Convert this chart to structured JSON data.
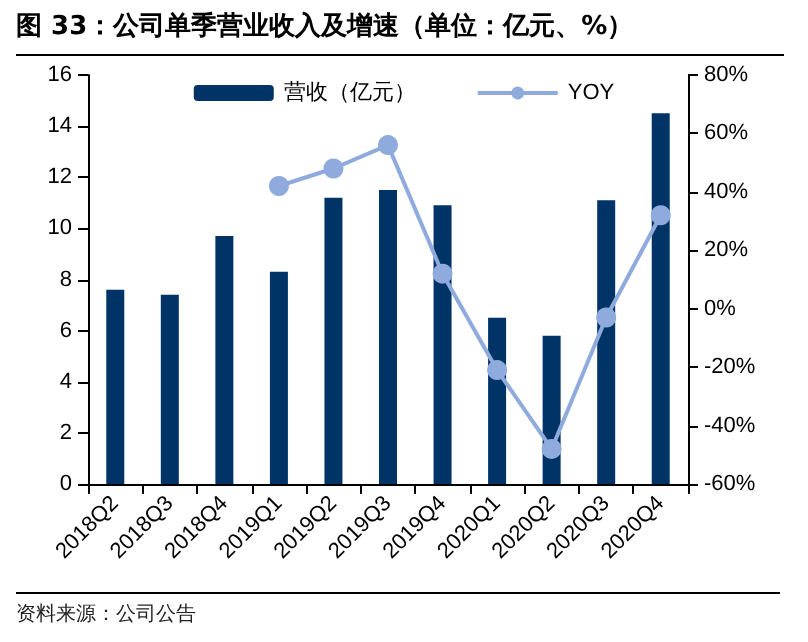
{
  "chart_data": {
    "type": "bar",
    "title": "图 33：公司单季营业收入及增速（单位：亿元、%）",
    "categories": [
      "2018Q2",
      "2018Q3",
      "2018Q4",
      "2019Q1",
      "2019Q2",
      "2019Q3",
      "2019Q4",
      "2020Q1",
      "2020Q2",
      "2020Q3",
      "2020Q4"
    ],
    "series": [
      {
        "name": "营收（亿元）",
        "color": "#003366",
        "values": [
          7.6,
          7.4,
          9.7,
          8.3,
          11.2,
          11.5,
          10.9,
          6.5,
          5.8,
          11.1,
          14.5
        ]
      },
      {
        "name": "YOY",
        "type": "line",
        "axis": "y2",
        "color": "#8faadc",
        "values": [
          null,
          null,
          null,
          42,
          48,
          56,
          12,
          -21,
          -48,
          -3,
          32
        ]
      }
    ],
    "ylim": [
      0,
      16
    ],
    "yticks": [
      0,
      2,
      4,
      6,
      8,
      10,
      12,
      14,
      16
    ],
    "y2lim": [
      -60,
      80
    ],
    "y2ticks": [
      {
        "value": -60,
        "label": "-60%"
      },
      {
        "value": -40,
        "label": "-40%"
      },
      {
        "value": -20,
        "label": "-20%"
      },
      {
        "value": 0,
        "label": "0%"
      },
      {
        "value": 20,
        "label": "20%"
      },
      {
        "value": 40,
        "label": "40%"
      },
      {
        "value": 60,
        "label": "60%"
      },
      {
        "value": 80,
        "label": "80%"
      }
    ],
    "annotations": [
      "资料来源：公司公告"
    ],
    "legend": "top",
    "grid": false,
    "marker": "circle"
  }
}
